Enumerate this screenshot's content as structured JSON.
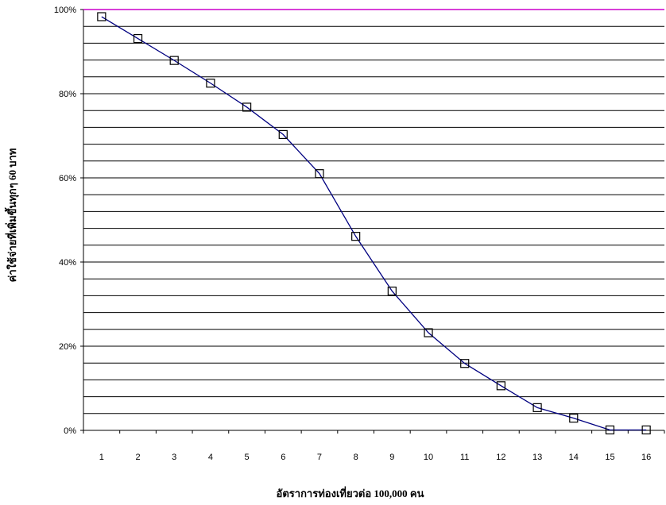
{
  "chart_data": {
    "type": "line",
    "title": "",
    "xlabel": "อัตราการท่องเที่ยวต่อ 100,000 คน",
    "ylabel": "ค่าใช้จ่ายที่เพิ่มขึ้นทุกๆ 60 บาท",
    "categories": [
      "1",
      "2",
      "3",
      "4",
      "5",
      "6",
      "7",
      "8",
      "9",
      "10",
      "11",
      "12",
      "13",
      "14",
      "15",
      "16"
    ],
    "series": [
      {
        "values": [
          98.3,
          93.1,
          87.9,
          82.5,
          76.8,
          70.3,
          61.0,
          46.1,
          33.1,
          23.2,
          15.9,
          10.6,
          5.4,
          2.9,
          0.1,
          0.1
        ],
        "color": "#000080",
        "marker": "open-square"
      }
    ],
    "reference_line": {
      "value": 100,
      "color": "#cc00cc"
    },
    "ylim": [
      0,
      100
    ],
    "y_ticks": [
      "0%",
      "20%",
      "40%",
      "60%",
      "80%",
      "100%"
    ],
    "grid": true
  }
}
